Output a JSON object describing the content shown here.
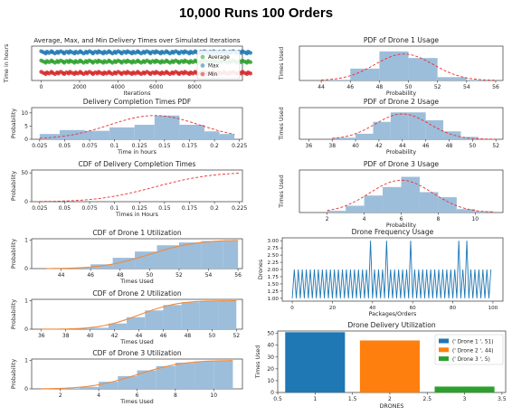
{
  "page": {
    "title": "10,000 Runs 100 Orders"
  },
  "colors": {
    "hist": "#9dbedb",
    "blue": "#1f77b4",
    "orange": "#ff7f0e",
    "green": "#2ca02c",
    "red": "#d62728",
    "pdf": "#e8302f",
    "cdf": "#f08a3c"
  },
  "chart_data": [
    {
      "id": "delivery-times",
      "type": "scatter",
      "title": "Average, Max, and Min Delivery Times over Simulated Iterations",
      "xlabel": "Iterations",
      "ylabel": "Time in hours",
      "xlim": [
        -500,
        10500
      ],
      "ylim": [
        0,
        1
      ],
      "xticks": [
        0,
        2000,
        4000,
        6000,
        8000
      ],
      "series": [
        {
          "name": "Average",
          "color": "#2ca02c",
          "y": 0.55
        },
        {
          "name": "Max",
          "color": "#1f77b4",
          "y": 0.82
        },
        {
          "name": "Min",
          "color": "#d62728",
          "y": 0.22
        }
      ],
      "legend": "lower-right"
    },
    {
      "id": "completion-pdf",
      "type": "bar",
      "title": "Delivery Completion Times PDF",
      "xlabel": "Time in hours",
      "ylabel": "Probability",
      "xlim": [
        0.017,
        0.228
      ],
      "ylim": [
        0,
        12
      ],
      "xticks": [
        0.025,
        0.05,
        0.075,
        0.1,
        0.125,
        0.15,
        0.175,
        0.2,
        0.225
      ],
      "yticks": [
        0,
        5,
        10
      ],
      "bins": [
        [
          0.025,
          0.045,
          2
        ],
        [
          0.045,
          0.07,
          3.5
        ],
        [
          0.07,
          0.095,
          3.2
        ],
        [
          0.095,
          0.12,
          4.5
        ],
        [
          0.12,
          0.14,
          5.5
        ],
        [
          0.14,
          0.165,
          9
        ],
        [
          0.165,
          0.19,
          5.5
        ],
        [
          0.19,
          0.205,
          3
        ],
        [
          0.205,
          0.22,
          2
        ]
      ],
      "curve": {
        "kind": "normal",
        "mu": 0.14,
        "sigma": 0.045,
        "peak": 9
      }
    },
    {
      "id": "completion-cdf",
      "type": "line",
      "title": "CDF of Delivery Completion Times",
      "xlabel": "Times in Hours",
      "ylabel": "Probability",
      "xlim": [
        0.017,
        0.228
      ],
      "ylim": [
        0,
        55
      ],
      "xticks": [
        0.025,
        0.05,
        0.075,
        0.1,
        0.125,
        0.15,
        0.175,
        0.2,
        0.225
      ],
      "yticks": [
        0,
        50
      ],
      "curve": {
        "kind": "normal-cdf",
        "mu": 0.14,
        "sigma": 0.045,
        "scale": 51
      }
    },
    {
      "id": "drone1-cdf",
      "type": "bar",
      "title": "CDF of Drone 1 Utilization",
      "xlabel": "Times Used",
      "ylabel": "Probability",
      "xlim": [
        42,
        56.3
      ],
      "ylim": [
        0,
        1.05
      ],
      "xticks": [
        44,
        46,
        48,
        50,
        52,
        54,
        56
      ],
      "yticks": [
        0,
        1
      ],
      "bins": [
        [
          43.0,
          44.5,
          0.01
        ],
        [
          44.5,
          46.0,
          0.03
        ],
        [
          46.0,
          47.5,
          0.15
        ],
        [
          47.5,
          49.0,
          0.38
        ],
        [
          49.0,
          50.5,
          0.6
        ],
        [
          50.5,
          52.0,
          0.82
        ],
        [
          52.0,
          53.5,
          0.92
        ],
        [
          53.5,
          55.0,
          0.97
        ],
        [
          55.0,
          56.0,
          1.0
        ]
      ],
      "curve": {
        "kind": "normal-cdf",
        "mu": 50,
        "sigma": 2.5,
        "scale": 1
      }
    },
    {
      "id": "drone2-cdf",
      "type": "bar",
      "title": "CDF of Drone 2 Utilization",
      "xlabel": "Times Used",
      "ylabel": "Probability",
      "xlim": [
        35.2,
        52.5
      ],
      "ylim": [
        0,
        1.05
      ],
      "xticks": [
        36,
        38,
        40,
        42,
        44,
        46,
        48,
        50,
        52
      ],
      "yticks": [
        0,
        1
      ],
      "bins": [
        [
          36.0,
          38.0,
          0.005
        ],
        [
          38.0,
          40.0,
          0.01
        ],
        [
          40.0,
          41.5,
          0.05
        ],
        [
          41.5,
          43.0,
          0.2
        ],
        [
          43.0,
          44.5,
          0.42
        ],
        [
          44.5,
          46.0,
          0.66
        ],
        [
          46.0,
          47.5,
          0.85
        ],
        [
          47.5,
          49.0,
          0.95
        ],
        [
          49.0,
          50.5,
          0.99
        ],
        [
          50.5,
          52.0,
          1.0
        ]
      ],
      "curve": {
        "kind": "normal-cdf",
        "mu": 44,
        "sigma": 2.5,
        "scale": 1
      }
    },
    {
      "id": "drone3-cdf",
      "type": "bar",
      "title": "CDF of Drone 3 Utilization",
      "xlabel": "Times Used",
      "ylabel": "Probability",
      "xlim": [
        0.5,
        11.5
      ],
      "ylim": [
        0,
        1.05
      ],
      "xticks": [
        2,
        4,
        6,
        8,
        10
      ],
      "yticks": [
        0,
        1
      ],
      "bins": [
        [
          1,
          2,
          0.005
        ],
        [
          2,
          3,
          0.02
        ],
        [
          3,
          4,
          0.07
        ],
        [
          4,
          5,
          0.25
        ],
        [
          5,
          6,
          0.45
        ],
        [
          6,
          7,
          0.65
        ],
        [
          7,
          8,
          0.8
        ],
        [
          8,
          9,
          0.92
        ],
        [
          9,
          10,
          0.97
        ],
        [
          10,
          11,
          1.0
        ]
      ],
      "curve": {
        "kind": "normal-cdf",
        "mu": 6,
        "sigma": 1.9,
        "scale": 1
      }
    },
    {
      "id": "drone1-pdf",
      "type": "bar",
      "title": "PDF of Drone 1 Usage",
      "xlabel": "Probability",
      "ylabel": "Times Used",
      "xlim": [
        42.5,
        56.5
      ],
      "ylim": [
        0,
        0.26
      ],
      "xticks": [
        44,
        46,
        48,
        50,
        52,
        54,
        56
      ],
      "bins": [
        [
          44.0,
          46.0,
          0.005
        ],
        [
          46.0,
          48.0,
          0.09
        ],
        [
          48.0,
          50.0,
          0.22
        ],
        [
          50.0,
          52.0,
          0.17
        ],
        [
          52.0,
          54.0,
          0.025
        ],
        [
          54.0,
          56.0,
          0.005
        ]
      ],
      "curve": {
        "kind": "normal",
        "mu": 49.7,
        "sigma": 2,
        "peak": 0.2
      }
    },
    {
      "id": "drone2-pdf",
      "type": "bar",
      "title": "PDF of Drone 2 Usage",
      "xlabel": "Probability",
      "ylabel": "Times Used",
      "xlim": [
        35.2,
        52.6
      ],
      "ylim": [
        0,
        0.2
      ],
      "xticks": [
        36,
        38,
        40,
        42,
        44,
        46,
        48,
        50,
        52
      ],
      "bins": [
        [
          38.0,
          40.0,
          0.01
        ],
        [
          40.0,
          41.5,
          0.035
        ],
        [
          41.5,
          43.0,
          0.11
        ],
        [
          43.0,
          44.5,
          0.17
        ],
        [
          44.5,
          46.0,
          0.17
        ],
        [
          46.0,
          47.5,
          0.12
        ],
        [
          47.5,
          49.0,
          0.05
        ],
        [
          49.0,
          50.5,
          0.015
        ],
        [
          50.5,
          52.0,
          0.004
        ]
      ],
      "curve": {
        "kind": "normal",
        "mu": 44,
        "sigma": 2.3,
        "peak": 0.16
      }
    },
    {
      "id": "drone3-pdf",
      "type": "bar",
      "title": "PDF of Drone 3 Usage",
      "xlabel": "Probability",
      "ylabel": "Times Used",
      "xlim": [
        0.5,
        11.5
      ],
      "ylim": [
        0,
        0.25
      ],
      "xticks": [
        2,
        4,
        6,
        8,
        10
      ],
      "bins": [
        [
          2,
          3,
          0.01
        ],
        [
          3,
          4,
          0.04
        ],
        [
          4,
          5,
          0.1
        ],
        [
          5,
          6,
          0.15
        ],
        [
          6,
          7,
          0.21
        ],
        [
          7,
          8,
          0.12
        ],
        [
          8,
          9,
          0.09
        ],
        [
          9,
          10,
          0.02
        ],
        [
          10,
          11,
          0.008
        ]
      ],
      "curve": {
        "kind": "normal",
        "mu": 6,
        "sigma": 1.7,
        "peak": 0.19
      }
    },
    {
      "id": "drone-frequency",
      "type": "line",
      "title": "Drone Frequency Usage",
      "xlabel": "Packages/Orders",
      "ylabel": "Drones",
      "xlim": [
        -5,
        105
      ],
      "ylim": [
        0.9,
        3.1
      ],
      "xticks": [
        0,
        20,
        40,
        60,
        80,
        100
      ],
      "yticks": [
        1.0,
        1.25,
        1.5,
        1.75,
        2.0,
        2.25,
        2.5,
        2.75,
        3.0
      ],
      "x": [
        0,
        1,
        2,
        3,
        4,
        5,
        6,
        7,
        8,
        9,
        10,
        11,
        12,
        13,
        14,
        15,
        16,
        17,
        18,
        19,
        20,
        21,
        22,
        23,
        24,
        25,
        26,
        27,
        28,
        29,
        30,
        31,
        32,
        33,
        34,
        35,
        36,
        37,
        38,
        39,
        40,
        41,
        42,
        43,
        44,
        45,
        46,
        47,
        48,
        49,
        50,
        51,
        52,
        53,
        54,
        55,
        56,
        57,
        58,
        59,
        60,
        61,
        62,
        63,
        64,
        65,
        66,
        67,
        68,
        69,
        70,
        71,
        72,
        73,
        74,
        75,
        76,
        77,
        78,
        79,
        80,
        81,
        82,
        83,
        84,
        85,
        86,
        87,
        88,
        89,
        90,
        91,
        92,
        93,
        94,
        95,
        96,
        97,
        98,
        99
      ],
      "y": [
        1,
        2,
        1,
        2,
        1,
        2,
        1,
        2,
        1,
        2,
        1,
        2,
        1,
        2,
        1,
        2,
        1,
        2,
        1,
        2,
        1,
        2,
        1,
        2,
        1,
        2,
        1,
        2,
        1,
        2,
        1,
        2,
        1,
        2,
        1,
        2,
        1,
        2,
        1,
        3,
        1,
        2,
        1,
        2,
        1,
        2,
        1,
        3,
        1,
        2,
        1,
        2,
        1,
        2,
        1,
        2,
        1,
        2,
        1,
        3,
        1,
        2,
        1,
        2,
        1,
        2,
        1,
        2,
        1,
        2,
        1,
        2,
        1,
        2,
        1,
        2,
        1,
        2,
        1,
        2,
        1,
        2,
        1,
        3,
        1,
        2,
        1,
        3,
        1,
        2,
        1,
        2,
        1,
        2,
        1,
        2,
        1,
        2,
        1,
        2
      ]
    },
    {
      "id": "drone-delivery",
      "type": "bar",
      "title": "Drone Delivery Utilization",
      "xlabel": "DRONES",
      "ylabel": "Times Used",
      "xlim": [
        0.5,
        3.55
      ],
      "ylim": [
        0,
        52
      ],
      "xticks": [
        0.5,
        1.0,
        1.5,
        2.0,
        2.5,
        3.0,
        3.5
      ],
      "yticks": [
        0,
        10,
        20,
        30,
        40,
        50
      ],
      "categories": [
        1,
        2,
        3
      ],
      "values": [
        51,
        44,
        5
      ],
      "series": [
        {
          "name": "(' Drone 1 ', 51)",
          "color": "#1f77b4"
        },
        {
          "name": "(' Drone 2 ', 44)",
          "color": "#ff7f0e"
        },
        {
          "name": "(' Drone 3 ', 5)",
          "color": "#2ca02c"
        }
      ],
      "legend": "top-right"
    }
  ]
}
